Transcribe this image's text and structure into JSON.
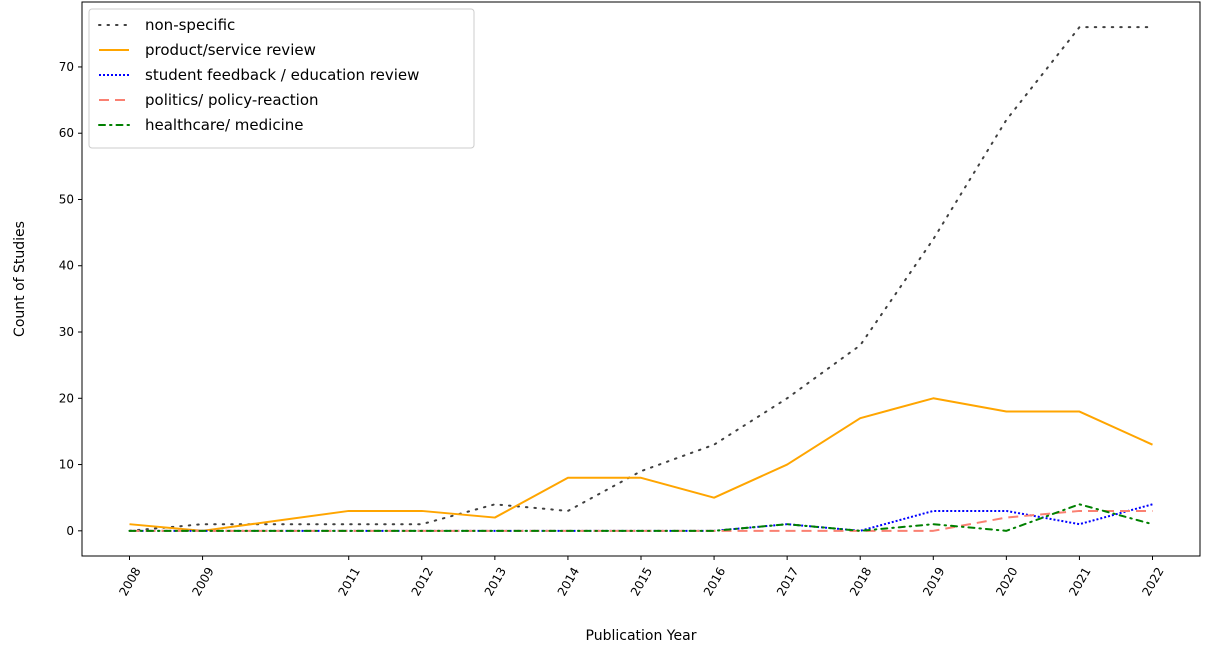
{
  "chart_data": {
    "type": "line",
    "title": "",
    "xlabel": "Publication Year",
    "ylabel": "Count of Studies",
    "x": [
      2008,
      2009,
      2010,
      2011,
      2012,
      2013,
      2014,
      2015,
      2016,
      2017,
      2018,
      2019,
      2020,
      2021,
      2022
    ],
    "xticks": [
      "2008",
      "2009",
      "2011",
      "2012",
      "2013",
      "2014",
      "2015",
      "2016",
      "2017",
      "2018",
      "2019",
      "2020",
      "2021",
      "2022"
    ],
    "yticks": [
      "0",
      "10",
      "20",
      "30",
      "40",
      "50",
      "60",
      "70"
    ],
    "xlim": [
      2007.35,
      2022.65
    ],
    "ylim": [
      -3.8,
      79.8
    ],
    "grid": false,
    "legend_position": "top-left",
    "series": [
      {
        "name": "non-specific",
        "color": "#404040",
        "values": [
          0,
          1,
          1,
          1,
          1,
          4,
          3,
          9,
          13,
          20,
          28,
          44,
          62,
          76,
          76
        ]
      },
      {
        "name": "product/service review",
        "color": "#ffa500",
        "values": [
          1,
          0,
          1.5,
          3,
          3,
          2,
          8,
          8,
          5,
          10,
          17,
          20,
          18,
          18,
          13
        ]
      },
      {
        "name": "student feedback / education review",
        "color": "#0000ff",
        "values": [
          0,
          0,
          0,
          0,
          0,
          0,
          0,
          0,
          0,
          1,
          0,
          3,
          3,
          1,
          4
        ]
      },
      {
        "name": "politics/ policy-reaction",
        "color": "#fa8072",
        "values": [
          0,
          0,
          0,
          0,
          0,
          0,
          0,
          0,
          0,
          0,
          0,
          0,
          2,
          3,
          3
        ]
      },
      {
        "name": "healthcare/ medicine",
        "color": "#008000",
        "values": [
          0,
          0,
          0,
          0,
          0,
          0,
          0,
          0,
          0,
          1,
          0,
          1,
          0,
          4,
          1
        ]
      }
    ]
  }
}
